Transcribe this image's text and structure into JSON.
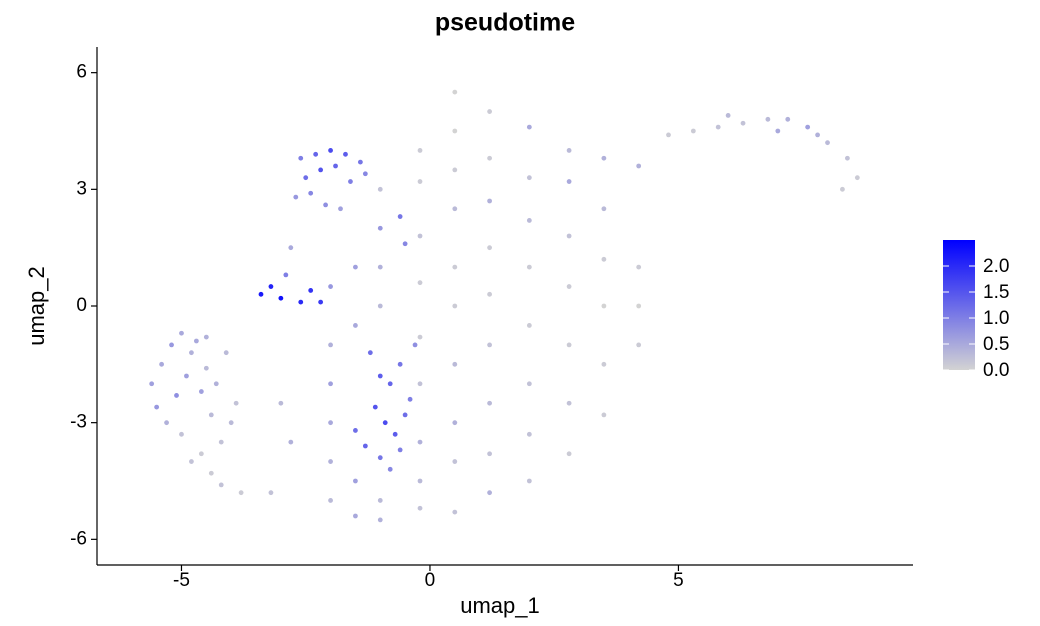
{
  "chart_data": {
    "type": "scatter",
    "title": "pseudotime",
    "x_label": "umap_1",
    "y_label": "umap_2",
    "xlim": [
      -6.7,
      9.72
    ],
    "ylim": [
      -6.66,
      6.66
    ],
    "xticks": [
      -5,
      0,
      5
    ],
    "yticks": [
      -6,
      -3,
      0,
      3,
      6
    ],
    "colorscale": [
      "#d3d3d3",
      "#0000ff"
    ],
    "clim": [
      0,
      2.5
    ],
    "cticks": [
      {
        "value": 0,
        "label": "0.0"
      },
      0.5,
      {
        "value": 1,
        "label": "1.0"
      },
      1.5,
      {
        "value": 2,
        "label": "2.0"
      }
    ],
    "x": [
      -5.6,
      -5.4,
      -5.2,
      -5.0,
      -4.8,
      -4.6,
      -4.4,
      -4.2,
      -5.5,
      -5.3,
      -5.1,
      -4.9,
      -4.7,
      -4.5,
      -4.3,
      -4.1,
      -5.0,
      -4.8,
      -4.6,
      -4.4,
      -4.2,
      -4.0,
      -3.8,
      -4.5,
      -3.9,
      -2.6,
      -2.3,
      -2.0,
      -1.7,
      -1.4,
      -2.5,
      -2.2,
      -1.9,
      -1.6,
      -1.3,
      -2.7,
      -2.4,
      -2.1,
      -1.8,
      -1.0,
      -0.6,
      -0.5,
      -2.8,
      -2.9,
      -3.4,
      -3.2,
      -3.0,
      -2.6,
      -2.4,
      -2.2,
      -1.2,
      -1.0,
      -0.8,
      -0.6,
      -0.4,
      -1.1,
      -0.9,
      -0.7,
      -0.5,
      -1.3,
      -1.0,
      -0.8,
      -0.6,
      -1.5,
      -0.3,
      -2,
      -2,
      -2,
      -2,
      -2,
      -2,
      -1.5,
      -1.5,
      -1.5,
      -1.5,
      -1,
      -1,
      -1,
      -1,
      -1,
      -0.2,
      -0.2,
      -0.2,
      -0.2,
      -0.2,
      -0.2,
      -0.2,
      -0.2,
      -0.2,
      0.5,
      0.5,
      0.5,
      0.5,
      0.5,
      0.5,
      0.5,
      0.5,
      0.5,
      0.5,
      1.2,
      1.2,
      1.2,
      1.2,
      1.2,
      1.2,
      1.2,
      1.2,
      1.2,
      2,
      2,
      2,
      2,
      2,
      2,
      2,
      2,
      2.8,
      2.8,
      2.8,
      2.8,
      2.8,
      2.8,
      2.8,
      3.5,
      3.5,
      3.5,
      3.5,
      3.5,
      3.5,
      4.2,
      4.2,
      4.2,
      4.2,
      -3.2,
      -3.0,
      -2.8,
      4.8,
      5.3,
      5.8,
      6.3,
      6.8,
      7.2,
      7.6,
      8.0,
      8.4,
      8.6,
      6.0,
      7.0,
      7.8,
      8.3
    ],
    "y": [
      -2.0,
      -1.5,
      -1.0,
      -0.7,
      -1.2,
      -2.2,
      -2.8,
      -3.5,
      -2.6,
      -3.0,
      -2.3,
      -1.8,
      -0.9,
      -1.6,
      -2.0,
      -1.2,
      -3.3,
      -4.0,
      -3.8,
      -4.3,
      -4.6,
      -3.0,
      -4.8,
      -0.8,
      -2.5,
      3.8,
      3.9,
      4.0,
      3.9,
      3.7,
      3.3,
      3.5,
      3.6,
      3.2,
      3.4,
      2.8,
      2.9,
      2.6,
      2.5,
      2.0,
      2.3,
      1.6,
      1.5,
      0.8,
      0.3,
      0.5,
      0.2,
      0.1,
      0.4,
      0.1,
      -1.2,
      -1.8,
      -2.0,
      -1.5,
      -2.4,
      -2.6,
      -3.0,
      -3.3,
      -2.8,
      -3.6,
      -3.9,
      -4.2,
      -3.7,
      -3.2,
      -1.0,
      -5,
      -4,
      -3,
      -2,
      -1,
      0.5,
      -5.4,
      -4.5,
      -0.5,
      1.0,
      -5.5,
      -5,
      0,
      1,
      3,
      -5.2,
      -4.5,
      -3.5,
      -2,
      -0.8,
      0.6,
      1.8,
      3.2,
      4.0,
      -5.3,
      -4,
      -3,
      -1.5,
      0,
      1,
      2.5,
      3.5,
      4.5,
      5.5,
      -4.8,
      -3.8,
      -2.5,
      -1,
      0.3,
      1.5,
      2.7,
      3.8,
      5.0,
      -4.5,
      -3.3,
      -2.0,
      -0.5,
      1.0,
      2.2,
      3.3,
      4.6,
      -3.8,
      -2.5,
      -1.0,
      0.5,
      1.8,
      3.2,
      4.0,
      -2.8,
      -1.5,
      0,
      1.2,
      2.5,
      3.8,
      -1.0,
      0.0,
      1.0,
      3.6,
      -4.8,
      -2.5,
      -3.5,
      4.4,
      4.5,
      4.6,
      4.7,
      4.8,
      4.8,
      4.6,
      4.2,
      3.8,
      3.3,
      4.9,
      4.5,
      4.4,
      3.0
    ],
    "values": [
      0.6,
      0.5,
      0.7,
      0.5,
      0.4,
      0.6,
      0.3,
      0.2,
      0.7,
      0.4,
      0.8,
      0.6,
      0.5,
      0.3,
      0.4,
      0.3,
      0.2,
      0.2,
      0.1,
      0.1,
      0.2,
      0.3,
      0.1,
      0.4,
      0.2,
      1.0,
      1.3,
      1.6,
      1.4,
      1.1,
      1.2,
      1.5,
      1.3,
      1.0,
      0.9,
      0.7,
      0.9,
      0.8,
      0.6,
      0.7,
      1.1,
      0.9,
      0.5,
      1.0,
      2.2,
      2.1,
      2.3,
      2.0,
      1.9,
      1.8,
      1.2,
      1.4,
      1.3,
      1.1,
      1.0,
      1.5,
      1.6,
      1.4,
      1.2,
      1.3,
      1.1,
      0.9,
      1.0,
      1.2,
      0.8,
      0.3,
      0.4,
      0.5,
      0.6,
      0.4,
      0.7,
      0.5,
      0.6,
      0.5,
      0.6,
      0.4,
      0.3,
      0.3,
      0.4,
      0.2,
      0.2,
      0.3,
      0.4,
      0.2,
      0.1,
      0.1,
      0.2,
      0.1,
      0.1,
      0.2,
      0.2,
      0.4,
      0.3,
      0.1,
      0.1,
      0.3,
      0.1,
      0,
      0,
      0.4,
      0.2,
      0.3,
      0.2,
      0.1,
      0.1,
      0.4,
      0.1,
      0.1,
      0.2,
      0.2,
      0.2,
      0.1,
      0.1,
      0.3,
      0.2,
      0.5,
      0.1,
      0.2,
      0.1,
      0.1,
      0.2,
      0.5,
      0.3,
      0.1,
      0.1,
      0,
      0.1,
      0.3,
      0.4,
      0.1,
      0,
      0.1,
      0.4,
      0.2,
      0.3,
      0.4,
      0.1,
      0.1,
      0.2,
      0.2,
      0.3,
      0.4,
      0.6,
      0.3,
      0.2,
      0.1,
      0.3,
      0.5,
      0.4,
      0.1
    ]
  }
}
